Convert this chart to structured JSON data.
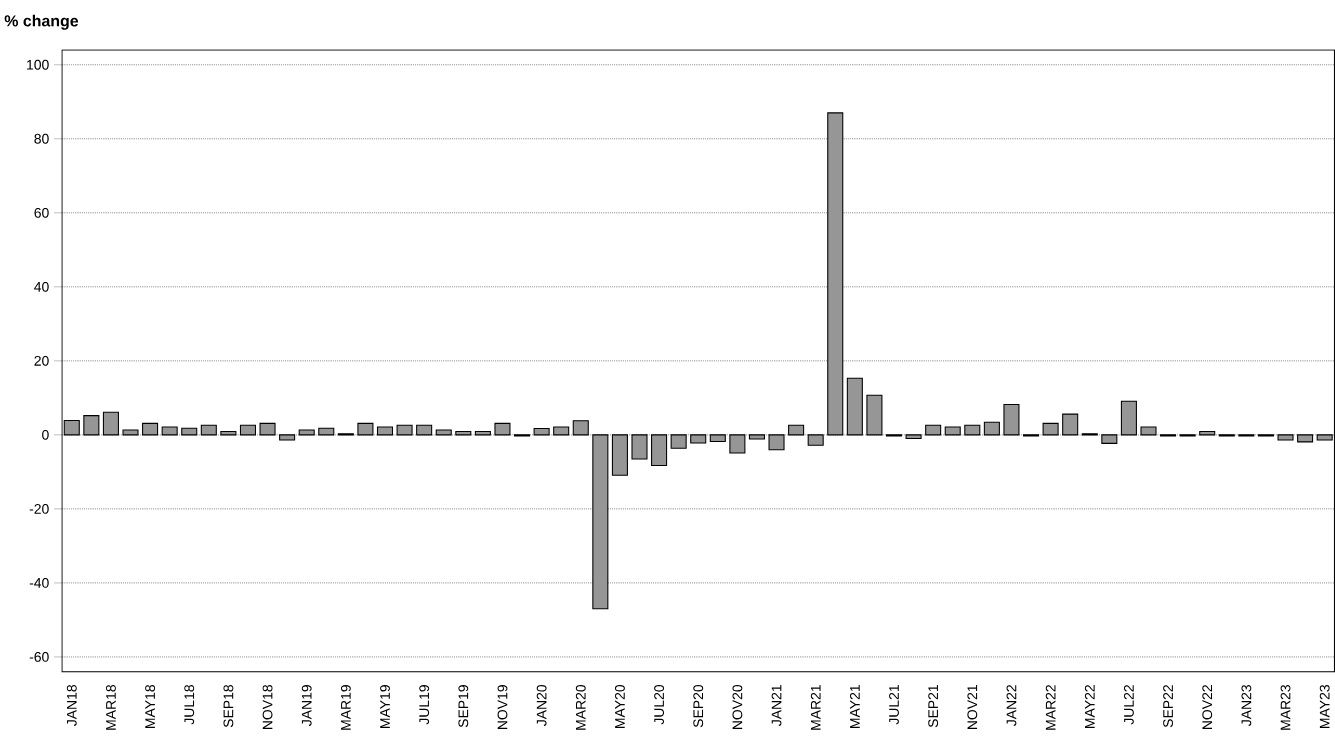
{
  "chart_data": {
    "type": "bar",
    "ylabel": "% change",
    "categories": [
      "JAN18",
      null,
      "MAR18",
      null,
      "MAY18",
      null,
      "JUL18",
      null,
      "SEP18",
      null,
      "NOV18",
      null,
      "JAN19",
      null,
      "MAR19",
      null,
      "MAY19",
      null,
      "JUL19",
      null,
      "SEP19",
      null,
      "NOV19",
      null,
      "JAN20",
      null,
      "MAR20",
      null,
      "MAY20",
      null,
      "JUL20",
      null,
      "SEP20",
      null,
      "NOV20",
      null,
      "JAN21",
      null,
      "MAR21",
      null,
      "MAY21",
      null,
      "JUL21",
      null,
      "SEP21",
      null,
      "NOV21",
      null,
      "JAN22",
      null,
      "MAR22",
      null,
      "MAY22",
      null,
      "JUL22",
      null,
      "SEP22",
      null,
      "NOV22",
      null,
      "JAN23",
      null,
      "MAR23",
      null,
      "MAY23"
    ],
    "values": [
      3.9,
      5.2,
      6.1,
      1.3,
      3.1,
      2.1,
      1.8,
      2.6,
      0.9,
      2.6,
      3.1,
      -1.4,
      1.3,
      1.8,
      0.3,
      3.1,
      2.1,
      2.6,
      2.6,
      1.3,
      0.9,
      0.9,
      3.1,
      -0.3,
      1.7,
      2.1,
      3.8,
      -47,
      -10.9,
      -6.5,
      -8.3,
      -3.6,
      -2.2,
      -1.8,
      -4.9,
      -1.1,
      -4.0,
      2.6,
      -2.8,
      87,
      15.3,
      10.7,
      -0.3,
      -1.0,
      2.6,
      2.1,
      2.6,
      3.4,
      8.2,
      -0.3,
      3.1,
      5.6,
      0.3,
      -2.3,
      9.1,
      2.1,
      -0.3,
      -0.3,
      0.9,
      -0.3,
      -0.3,
      -0.3,
      -1.4,
      -1.9,
      -1.4
    ],
    "color": "#969696",
    "ylim": [
      -64,
      104
    ],
    "yticks": [
      -60,
      -40,
      -20,
      0,
      20,
      40,
      60,
      80,
      100
    ],
    "grid": "y"
  }
}
